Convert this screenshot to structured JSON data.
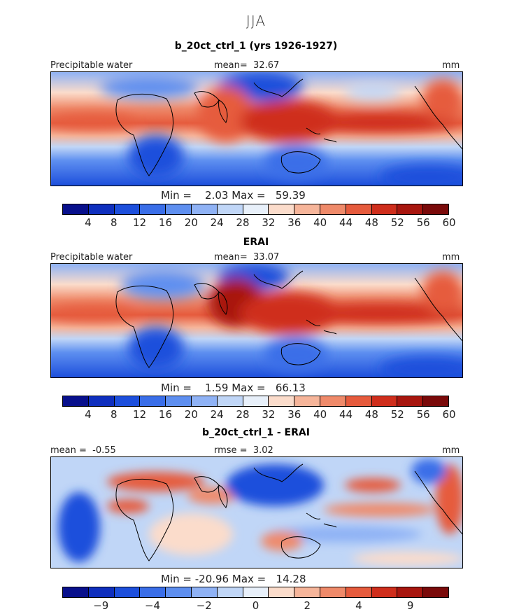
{
  "season": "JJA",
  "palette_plain": [
    "#08108c",
    "#0f2fbe",
    "#1d4fdc",
    "#3a6ee8",
    "#5e8ff0",
    "#8fb2f5",
    "#c0d6f7",
    "#e8f0fa",
    "#fbdccb",
    "#f6b59a",
    "#ef8a6a",
    "#e65b3d",
    "#cf2e1c",
    "#a8160f",
    "#7a0a0a"
  ],
  "palette_diff": [
    "#08108c",
    "#0f2fbe",
    "#1d4fdc",
    "#3a6ee8",
    "#5e8ff0",
    "#8fb2f5",
    "#c0d6f7",
    "#e8f0fa",
    "#fbdccb",
    "#f6b59a",
    "#ef8a6a",
    "#e65b3d",
    "#cf2e1c",
    "#a8160f",
    "#7a0a0a"
  ],
  "panels": [
    {
      "title": "b_20ct_ctrl_1 (yrs 1926-1927)",
      "left_label": "Precipitable water",
      "center_label": "mean=",
      "center_value": "32.67",
      "right_label": "mm",
      "min_label": "Min =",
      "min_value": "2.03",
      "max_label": "Max =",
      "max_value": "59.39",
      "ticks": [
        "4",
        "8",
        "12",
        "16",
        "20",
        "24",
        "28",
        "32",
        "36",
        "40",
        "44",
        "48",
        "52",
        "56",
        "60"
      ]
    },
    {
      "title": "ERAI",
      "left_label": "Precipitable water",
      "center_label": "mean=",
      "center_value": "33.07",
      "right_label": "mm",
      "min_label": "Min =",
      "min_value": "1.59",
      "max_label": "Max =",
      "max_value": "66.13",
      "ticks": [
        "4",
        "8",
        "12",
        "16",
        "20",
        "24",
        "28",
        "32",
        "36",
        "40",
        "44",
        "48",
        "52",
        "56",
        "60"
      ]
    },
    {
      "title": "b_20ct_ctrl_1 - ERAI",
      "left_label": "mean =",
      "left_value": "-0.55",
      "center_label": "rmse =",
      "center_value": "3.02",
      "right_label": "mm",
      "min_label": "Min =",
      "min_value": "-20.96",
      "max_label": "Max =",
      "max_value": "14.28",
      "ticks": [
        "-9",
        "-4",
        "-2",
        "0",
        "2",
        "4",
        "9"
      ]
    }
  ],
  "chart_data": [
    {
      "type": "heatmap",
      "title": "b_20ct_ctrl_1 (yrs 1926-1927)",
      "variable": "Precipitable water",
      "units": "mm",
      "mean": 32.67,
      "min": 2.03,
      "max": 59.39,
      "colorbar_levels": [
        4,
        8,
        12,
        16,
        20,
        24,
        28,
        32,
        36,
        40,
        44,
        48,
        52,
        56,
        60
      ]
    },
    {
      "type": "heatmap",
      "title": "ERAI",
      "variable": "Precipitable water",
      "units": "mm",
      "mean": 33.07,
      "min": 1.59,
      "max": 66.13,
      "colorbar_levels": [
        4,
        8,
        12,
        16,
        20,
        24,
        28,
        32,
        36,
        40,
        44,
        48,
        52,
        56,
        60
      ]
    },
    {
      "type": "heatmap",
      "title": "b_20ct_ctrl_1 - ERAI",
      "units": "mm",
      "mean": -0.55,
      "rmse": 3.02,
      "min": -20.96,
      "max": 14.28,
      "colorbar_levels": [
        -9,
        -4,
        -2,
        0,
        2,
        4,
        9
      ]
    }
  ]
}
